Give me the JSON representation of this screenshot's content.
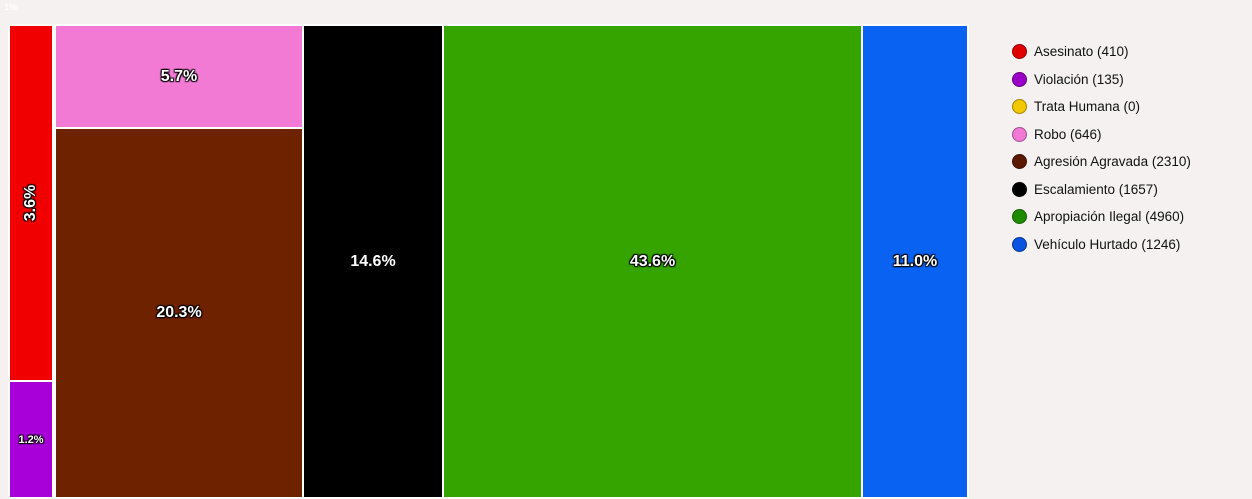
{
  "chart_data": {
    "type": "treemap",
    "corner_label": "1%",
    "cells": [
      {
        "name": "Asesinato",
        "count": 410,
        "label": "3.6%",
        "color": "#f00000",
        "vertical": true
      },
      {
        "name": "Violación",
        "count": 135,
        "label": "1.2%",
        "color": "#a800d8",
        "small": true
      },
      {
        "name": "Robo",
        "count": 646,
        "label": "5.7%",
        "color": "#f27ad4"
      },
      {
        "name": "Agresión Agravada",
        "count": 2310,
        "label": "20.3%",
        "color": "#6e2200"
      },
      {
        "name": "Escalamiento",
        "count": 1657,
        "label": "14.6%",
        "color": "#000000"
      },
      {
        "name": "Apropiación Ilegal",
        "count": 4960,
        "label": "43.6%",
        "color": "#35a300"
      },
      {
        "name": "Vehículo Hurtado",
        "count": 1246,
        "label": "11.0%",
        "color": "#0a62f2"
      }
    ],
    "legend": [
      {
        "label": "Asesinato (410)",
        "color": "#e00000"
      },
      {
        "label": "Violación (135)",
        "color": "#9b00c8"
      },
      {
        "label": "Trata Humana (0)",
        "color": "#f2c800"
      },
      {
        "label": "Robo (646)",
        "color": "#f27ad4"
      },
      {
        "label": "Agresión Agravada (2310)",
        "color": "#5a1800"
      },
      {
        "label": "Escalamiento (1657)",
        "color": "#000000"
      },
      {
        "label": "Apropiación Ilegal (4960)",
        "color": "#1f8c00"
      },
      {
        "label": "Vehículo Hurtado (1246)",
        "color": "#0a52e0"
      }
    ]
  }
}
